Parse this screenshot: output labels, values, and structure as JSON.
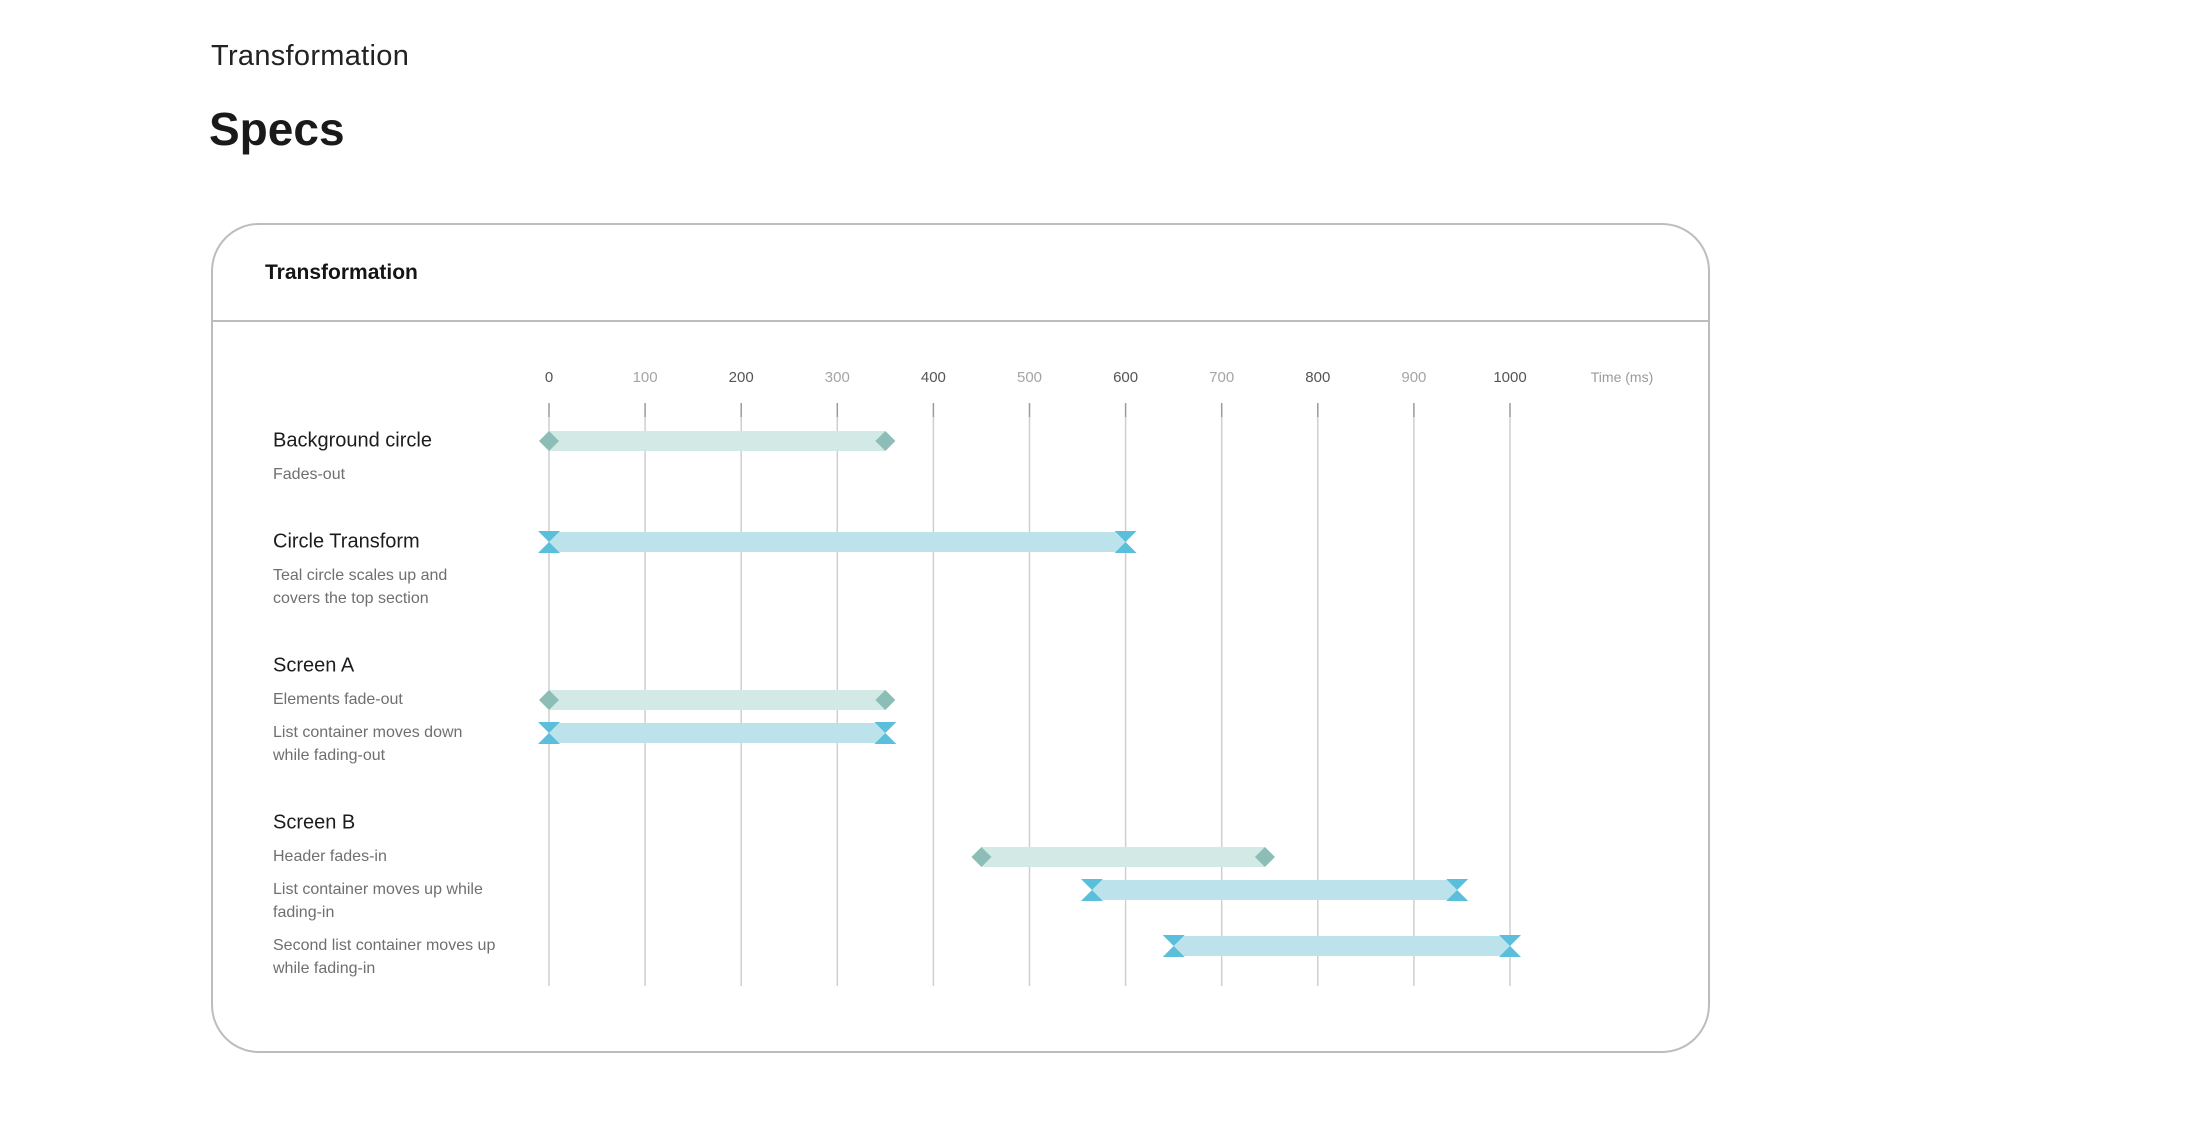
{
  "page": {
    "eyebrow": "Transformation",
    "title": "Specs"
  },
  "card": {
    "title": "Transformation"
  },
  "colors": {
    "fade_bar": "#d3e9e6",
    "fade_marker": "#8dbdb7",
    "move_bar": "#bce3ec",
    "move_marker": "#5bbfdc",
    "gridline": "#cfcfcf",
    "tick_dark": "#555555",
    "tick_light": "#a5a5a5"
  },
  "chart_data": {
    "type": "gantt",
    "xlabel": "Time (ms)",
    "xlim": [
      0,
      1000
    ],
    "ticks": [
      {
        "value": 0,
        "label": "0",
        "emphasis": true
      },
      {
        "value": 100,
        "label": "100",
        "emphasis": false
      },
      {
        "value": 200,
        "label": "200",
        "emphasis": true
      },
      {
        "value": 300,
        "label": "300",
        "emphasis": false
      },
      {
        "value": 400,
        "label": "400",
        "emphasis": true
      },
      {
        "value": 500,
        "label": "500",
        "emphasis": false
      },
      {
        "value": 600,
        "label": "600",
        "emphasis": true
      },
      {
        "value": 700,
        "label": "700",
        "emphasis": false
      },
      {
        "value": 800,
        "label": "800",
        "emphasis": true
      },
      {
        "value": 900,
        "label": "900",
        "emphasis": false
      },
      {
        "value": 1000,
        "label": "1000",
        "emphasis": true
      }
    ],
    "groups": [
      {
        "name": "Background circle",
        "tasks": [
          {
            "description": [
              "Fades-out"
            ],
            "start": 0,
            "end": 350,
            "kind": "fade"
          }
        ]
      },
      {
        "name": "Circle Transform",
        "tasks": [
          {
            "description": [
              "Teal circle scales up and",
              "covers the top section"
            ],
            "start": 0,
            "end": 600,
            "kind": "move"
          }
        ]
      },
      {
        "name": "Screen A",
        "tasks": [
          {
            "description": [
              "Elements fade-out"
            ],
            "start": 0,
            "end": 350,
            "kind": "fade"
          },
          {
            "description": [
              "List container moves down",
              "while fading-out"
            ],
            "start": 0,
            "end": 350,
            "kind": "move"
          }
        ]
      },
      {
        "name": "Screen B",
        "tasks": [
          {
            "description": [
              "Header fades-in"
            ],
            "start": 450,
            "end": 745,
            "kind": "fade"
          },
          {
            "description": [
              "List container moves up while",
              "fading-in"
            ],
            "start": 565,
            "end": 945,
            "kind": "move"
          },
          {
            "description": [
              "Second list container moves up",
              "while fading-in"
            ],
            "start": 650,
            "end": 1000,
            "kind": "move"
          }
        ]
      }
    ]
  }
}
